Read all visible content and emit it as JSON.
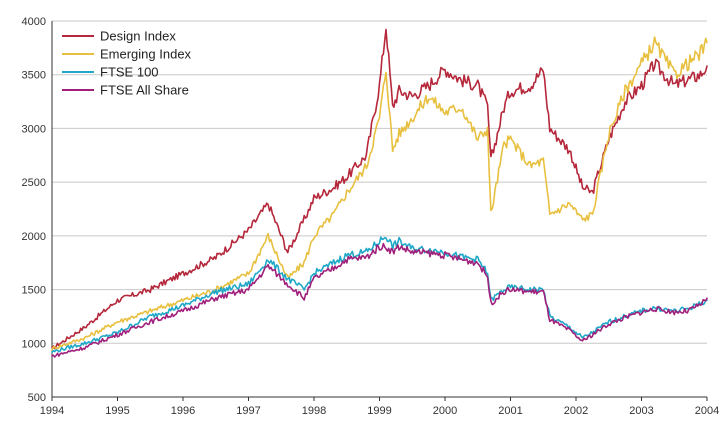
{
  "chart_data": {
    "type": "line",
    "title": "",
    "xlabel": "",
    "ylabel": "",
    "xlim": [
      1994,
      2004
    ],
    "ylim": [
      500,
      4000
    ],
    "grid": true,
    "legend_position": "top-left",
    "x_ticks": [
      "1994",
      "1995",
      "1996",
      "1997",
      "1998",
      "1999",
      "2000",
      "2001",
      "2002",
      "2003",
      "2004"
    ],
    "y_ticks": [
      "500",
      "1000",
      "1500",
      "2000",
      "2500",
      "3000",
      "3500",
      "4000"
    ],
    "x": [
      1994.0,
      1994.5,
      1995.0,
      1995.5,
      1996.0,
      1996.5,
      1997.0,
      1997.3,
      1997.6,
      1997.85,
      1998.0,
      1998.3,
      1998.5,
      1998.8,
      1999.0,
      1999.1,
      1999.2,
      1999.3,
      1999.5,
      1999.75,
      2000.0,
      2000.25,
      2000.5,
      2000.65,
      2000.7,
      2000.9,
      2001.0,
      2001.3,
      2001.5,
      2001.6,
      2001.9,
      2002.1,
      2002.25,
      2002.5,
      2002.75,
      2003.0,
      2003.2,
      2003.5,
      2003.7,
      2003.9,
      2004.0
    ],
    "series": [
      {
        "name": "Design Index",
        "color": "#b5273a",
        "values": [
          950,
          1150,
          1400,
          1500,
          1650,
          1800,
          2050,
          2300,
          1850,
          2150,
          2350,
          2450,
          2550,
          2750,
          3400,
          3950,
          3200,
          3350,
          3300,
          3400,
          3550,
          3450,
          3400,
          3200,
          2700,
          3200,
          3350,
          3400,
          3550,
          3000,
          2800,
          2450,
          2400,
          2900,
          3250,
          3400,
          3600,
          3400,
          3450,
          3500,
          3580
        ]
      },
      {
        "name": "Emerging Index",
        "color": "#e8c040",
        "values": [
          950,
          1050,
          1200,
          1300,
          1400,
          1500,
          1650,
          2000,
          1600,
          1750,
          2000,
          2200,
          2400,
          2650,
          3100,
          3550,
          2800,
          2950,
          3100,
          3300,
          3150,
          3200,
          2900,
          3000,
          2200,
          2850,
          2900,
          2650,
          2700,
          2200,
          2300,
          2150,
          2200,
          2950,
          3350,
          3600,
          3800,
          3500,
          3600,
          3700,
          3800
        ]
      },
      {
        "name": "FTSE 100",
        "color": "#20a8c8",
        "values": [
          920,
          1000,
          1100,
          1250,
          1350,
          1480,
          1550,
          1780,
          1600,
          1500,
          1650,
          1750,
          1820,
          1850,
          1950,
          2000,
          1900,
          1950,
          1880,
          1870,
          1850,
          1800,
          1780,
          1650,
          1400,
          1500,
          1520,
          1500,
          1500,
          1250,
          1150,
          1050,
          1100,
          1200,
          1250,
          1300,
          1330,
          1300,
          1320,
          1370,
          1400
        ]
      },
      {
        "name": "FTSE All Share",
        "color": "#a0207c",
        "values": [
          880,
          960,
          1080,
          1200,
          1300,
          1420,
          1500,
          1720,
          1550,
          1420,
          1600,
          1700,
          1780,
          1800,
          1900,
          1900,
          1850,
          1900,
          1850,
          1840,
          1820,
          1780,
          1750,
          1620,
          1370,
          1480,
          1500,
          1480,
          1480,
          1220,
          1120,
          1020,
          1080,
          1180,
          1240,
          1290,
          1320,
          1290,
          1300,
          1360,
          1420
        ]
      }
    ]
  }
}
